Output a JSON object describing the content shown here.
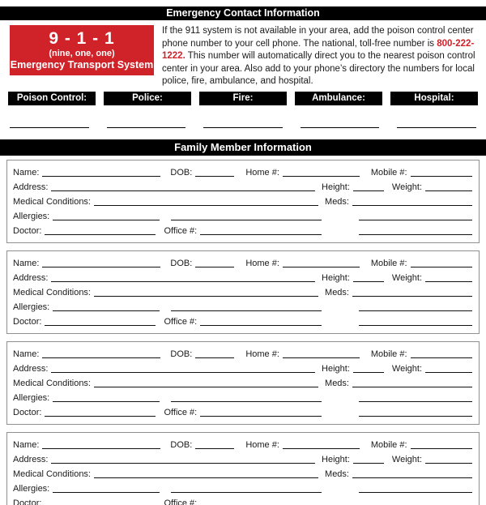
{
  "header": {
    "title": "Emergency Contact Information"
  },
  "emergency_911": {
    "number_display": "9 - 1 - 1",
    "number_words": "(nine, one, one)",
    "caption": "Emergency Transport System",
    "box_color": "#cf2229"
  },
  "poison_info": {
    "text_before": "If the 911 system is not available in your area, add the poison control center phone number to your cell phone. The national, toll-free number is ",
    "phone_number": "800-222-1222.",
    "text_after": " This number will automatically direct you to the nearest poison control center in your area. Also add to your phone’s directory the numbers for local police, fire, ambulance, and hospital.",
    "phone_color": "#cf2229"
  },
  "contacts": {
    "labels": [
      "Poison Control:",
      "Police:",
      "Fire:",
      "Ambulance:",
      "Hospital:"
    ],
    "values": [
      "",
      "",
      "",
      "",
      ""
    ]
  },
  "family_section": {
    "title": "Family Member Information",
    "field_labels": {
      "name": "Name:",
      "dob": "DOB:",
      "home": "Home #:",
      "mobile": "Mobile #:",
      "address": "Address:",
      "height": "Height:",
      "weight": "Weight:",
      "medical_conditions": "Medical Conditions:",
      "meds": "Meds:",
      "allergies": "Allergies:",
      "doctor": "Doctor:",
      "office": "Office #:"
    },
    "members": [
      {
        "name": "",
        "dob": "",
        "home": "",
        "mobile": "",
        "address": "",
        "height": "",
        "weight": "",
        "medical_conditions": "",
        "meds": "",
        "allergies": "",
        "doctor": "",
        "office": ""
      },
      {
        "name": "",
        "dob": "",
        "home": "",
        "mobile": "",
        "address": "",
        "height": "",
        "weight": "",
        "medical_conditions": "",
        "meds": "",
        "allergies": "",
        "doctor": "",
        "office": ""
      },
      {
        "name": "",
        "dob": "",
        "home": "",
        "mobile": "",
        "address": "",
        "height": "",
        "weight": "",
        "medical_conditions": "",
        "meds": "",
        "allergies": "",
        "doctor": "",
        "office": ""
      },
      {
        "name": "",
        "dob": "",
        "home": "",
        "mobile": "",
        "address": "",
        "height": "",
        "weight": "",
        "medical_conditions": "",
        "meds": "",
        "allergies": "",
        "doctor": "",
        "office": ""
      }
    ]
  }
}
